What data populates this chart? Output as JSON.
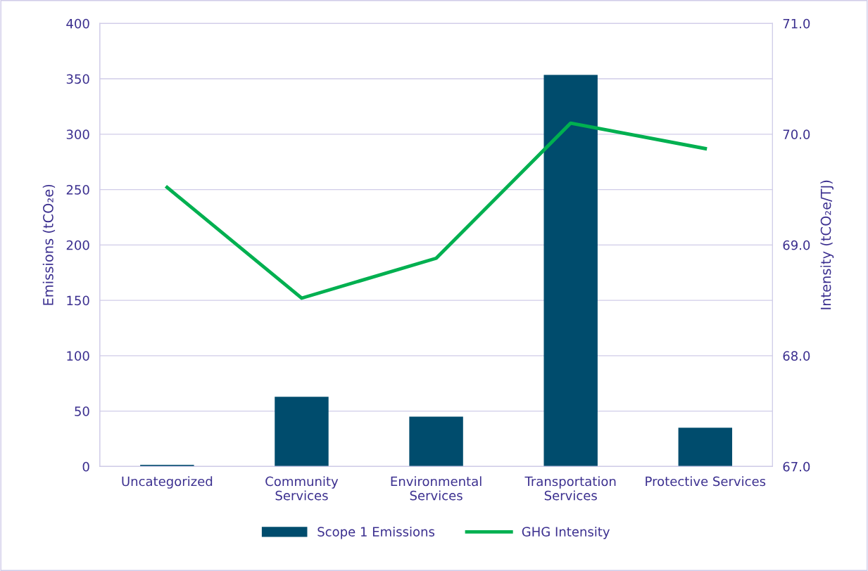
{
  "chart_data": {
    "type": "bar",
    "categories": [
      "Uncategorized",
      "Community\nServices",
      "Environmental\nServices",
      "Transportation\nServices",
      "Protective Services"
    ],
    "series": [
      {
        "name": "Scope 1 Emissions",
        "color": "#004c6d",
        "values": [
          1.5,
          63,
          45,
          353.5,
          35
        ]
      },
      {
        "name": "GHG Intensity",
        "type": "line",
        "axis": "y2",
        "color": "#00b050",
        "values": [
          69.52,
          68.52,
          68.88,
          70.1,
          69.87
        ]
      }
    ],
    "ylabel": "Emissions (tCO₂e)",
    "y2label": "Intensity (tCO₂e/TJ)",
    "ylim": [
      0,
      400
    ],
    "yticks": [
      0,
      50,
      100,
      150,
      200,
      250,
      300,
      350,
      400
    ],
    "y2lim": [
      67,
      71
    ],
    "y2ticks": [
      {
        "value": 67,
        "label": "67.0"
      },
      {
        "value": 68,
        "label": "68.0"
      },
      {
        "value": 69,
        "label": "69.0"
      },
      {
        "value": 70,
        "label": "70.0"
      },
      {
        "value": 71,
        "label": "71.0"
      }
    ],
    "grid": "y",
    "legend": "bottom",
    "marker": "none",
    "line_style": "solid"
  }
}
